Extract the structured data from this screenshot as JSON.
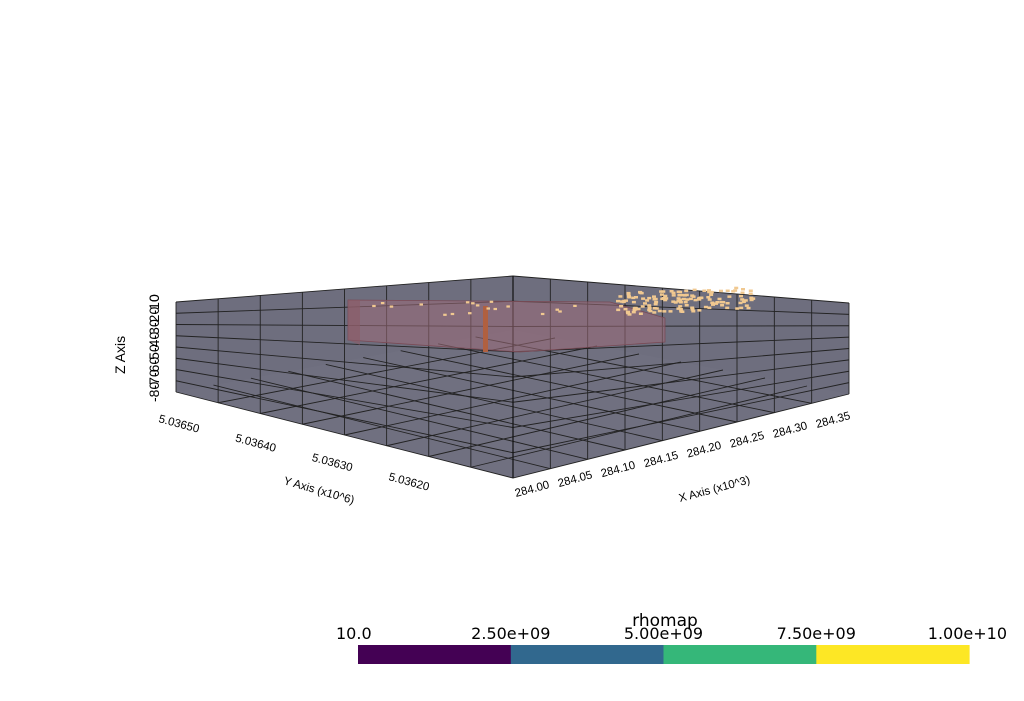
{
  "chart_data": {
    "type": "3d-volume",
    "x_axis": {
      "title": "X Axis (x10^3)",
      "ticks": [
        "284.00",
        "284.05",
        "284.10",
        "284.15",
        "284.20",
        "284.25",
        "284.30",
        "284.35"
      ],
      "range": [
        284.0,
        284.38
      ]
    },
    "y_axis": {
      "title": "Y Axis (x10^6)",
      "ticks": [
        "5.03650",
        "5.03640",
        "5.03630",
        "5.03620"
      ],
      "range": [
        5.0361,
        5.03655
      ]
    },
    "z_axis": {
      "title": "Z Axis",
      "ticks": [
        "-80",
        "-70",
        "-60",
        "-50",
        "-40",
        "-30",
        "-20",
        "-10",
        "0"
      ]
    },
    "colorbar": {
      "title": "rhomap",
      "colormap": "viridis",
      "ticks": [
        "10.0",
        "2.50e+09",
        "5.00e+09",
        "7.50e+09",
        "1.00e+10"
      ],
      "range": [
        10.0,
        10000000000.0
      ],
      "bins": 4,
      "bin_colors": [
        "#440154",
        "#31688e",
        "#35b779",
        "#fde725"
      ]
    },
    "colors": {
      "box_faces": "#6e6e7e",
      "grid_lines": "#222222",
      "volume_fill": "#9c6b78",
      "surface_cells": "#f0c890",
      "borehole": "#b06040"
    },
    "grid": true
  }
}
